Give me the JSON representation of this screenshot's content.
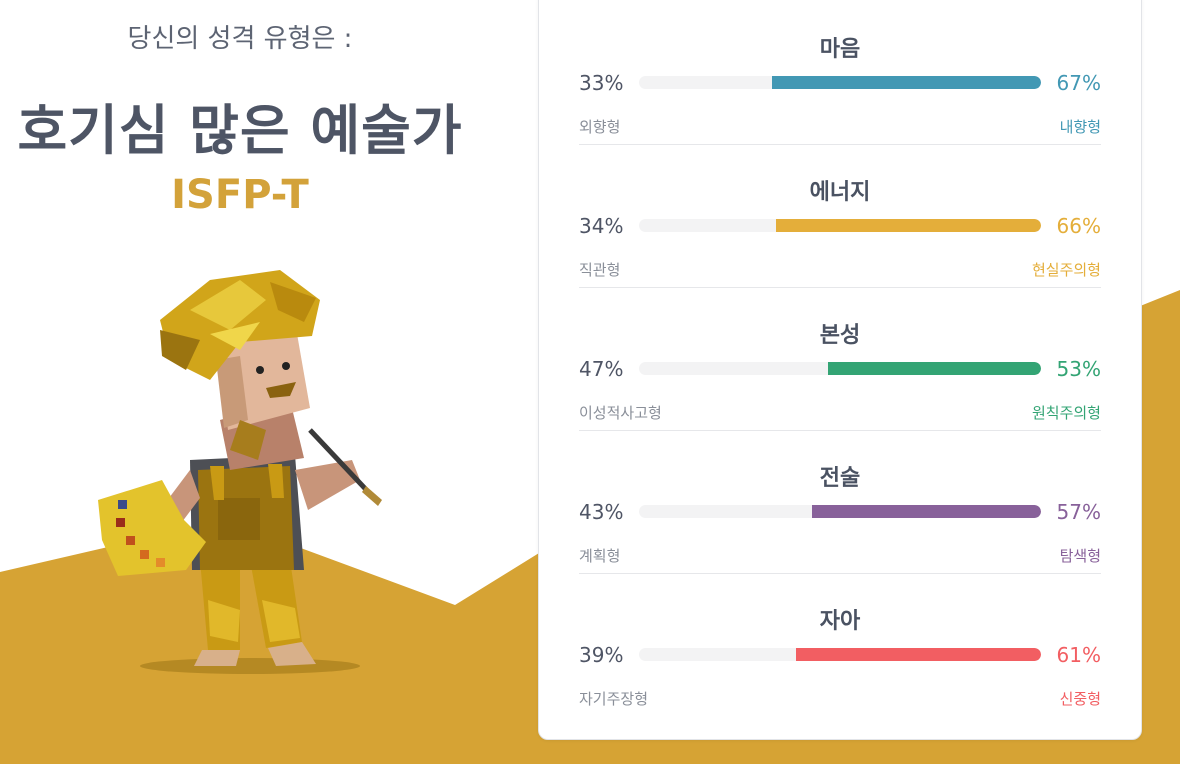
{
  "header": {
    "subtitle": "당신의 성격 유형은 :",
    "type_name": "호기심 많은 예술가",
    "type_code": "ISFP-T"
  },
  "character": {
    "icon": "painter-character-illustration"
  },
  "colors": {
    "accent_gold": "#d6a334",
    "mind": "#4298b4",
    "energy": "#e4ae3a",
    "nature": "#33a474",
    "tactics": "#88619a",
    "identity": "#f25e62"
  },
  "traits": [
    {
      "title": "마음",
      "left_pct": "33%",
      "right_pct": "67%",
      "left_label": "외향형",
      "right_label": "내향형",
      "value": 0.67
    },
    {
      "title": "에너지",
      "left_pct": "34%",
      "right_pct": "66%",
      "left_label": "직관형",
      "right_label": "현실주의형",
      "value": 0.66
    },
    {
      "title": "본성",
      "left_pct": "47%",
      "right_pct": "53%",
      "left_label": "이성적사고형",
      "right_label": "원칙주의형",
      "value": 0.53
    },
    {
      "title": "전술",
      "left_pct": "43%",
      "right_pct": "57%",
      "left_label": "계획형",
      "right_label": "탐색형",
      "value": 0.57
    },
    {
      "title": "자아",
      "left_pct": "39%",
      "right_pct": "61%",
      "left_label": "자기주장형",
      "right_label": "신중형",
      "value": 0.61
    }
  ]
}
